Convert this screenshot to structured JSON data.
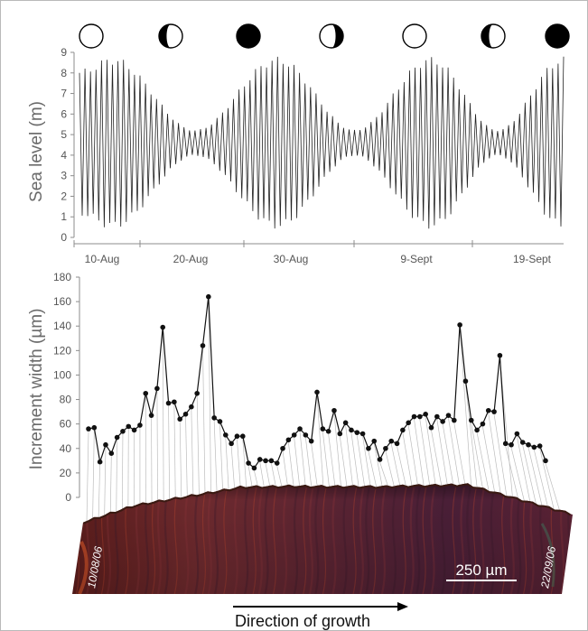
{
  "moon_phases": [
    {
      "phase": "full",
      "icon": "full-moon-icon"
    },
    {
      "phase": "last-quarter",
      "icon": "last-quarter-moon-icon"
    },
    {
      "phase": "new",
      "icon": "new-moon-icon"
    },
    {
      "phase": "first-quarter",
      "icon": "first-quarter-moon-icon"
    },
    {
      "phase": "full",
      "icon": "full-moon-icon"
    },
    {
      "phase": "last-quarter",
      "icon": "last-quarter-moon-icon"
    },
    {
      "phase": "new",
      "icon": "new-moon-icon"
    }
  ],
  "chart_data": [
    {
      "type": "line",
      "ylabel": "Sea level (m)",
      "ylim": [
        0,
        9
      ],
      "yticks": [
        "0",
        "1",
        "2",
        "3",
        "4",
        "5",
        "6",
        "7",
        "8",
        "9"
      ],
      "xtick_labels": [
        "10-Aug",
        "20-Aug",
        "30-Aug",
        "9-Sept",
        "19-Sept"
      ],
      "x_range": [
        "09-Aug",
        "22-Sept"
      ],
      "mean_level": 4.6,
      "spring_tide_amplitude": 4.0,
      "neap_tide_amplitude": 0.6,
      "high_water_peaks": [
        {
          "date": "12-Aug",
          "value": 8.4
        },
        {
          "date": "27-Aug",
          "value": 7.6
        },
        {
          "date": "10-Sept",
          "value": 8.8
        },
        {
          "date": "22-Sept",
          "value": 7.8
        }
      ],
      "tides_per_day": 2,
      "color": "#222222"
    },
    {
      "type": "line",
      "ylabel": "Increment width (µm)",
      "ylim": [
        0,
        180
      ],
      "yticks": [
        "0",
        "20",
        "40",
        "60",
        "80",
        "100",
        "120",
        "140",
        "160",
        "180"
      ],
      "values": [
        56,
        57,
        29,
        43,
        36,
        49,
        54,
        58,
        55,
        59,
        85,
        67,
        89,
        139,
        77,
        78,
        64,
        68,
        74,
        85,
        124,
        164,
        65,
        62,
        51,
        44,
        50,
        50,
        28,
        24,
        31,
        30,
        30,
        28,
        40,
        47,
        51,
        56,
        51,
        46,
        86,
        56,
        54,
        71,
        52,
        61,
        55,
        53,
        52,
        40,
        46,
        31,
        40,
        46,
        44,
        55,
        61,
        66,
        66,
        68,
        57,
        66,
        62,
        67,
        63,
        141,
        95,
        63,
        55,
        60,
        71,
        70,
        116,
        44,
        43,
        52,
        45,
        43,
        41,
        42,
        30
      ],
      "color": "#111111"
    }
  ],
  "image_panel": {
    "start_date": "10/08/06",
    "end_date": "22/09/06",
    "scale_bar_label": "250 µm"
  },
  "growth_label": "Direction of growth"
}
